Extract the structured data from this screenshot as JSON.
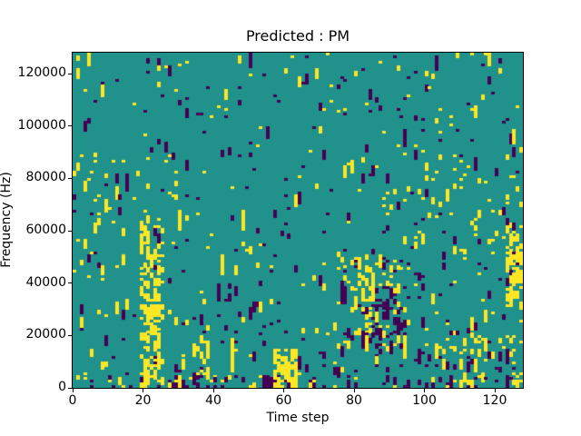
{
  "chart": {
    "title": "Predicted : PM",
    "xlabel": "Time step",
    "ylabel": "Frequency (Hz)"
  },
  "chart_data": {
    "type": "heatmap",
    "title": "Predicted : PM",
    "xlabel": "Time step",
    "ylabel": "Frequency (Hz)",
    "grid": {
      "cols": 128,
      "rows": 128
    },
    "x_range": [
      0,
      128
    ],
    "y_range": [
      0,
      128000
    ],
    "x_ticks": [
      0,
      20,
      40,
      60,
      80,
      100,
      120
    ],
    "y_ticks": [
      0,
      20000,
      40000,
      60000,
      80000,
      100000,
      120000
    ],
    "grid_lines": false,
    "legend": "none",
    "colormap": {
      "name": "viridis-3-level",
      "low": "#440154",
      "mid": "#21918c",
      "high": "#fde725",
      "background_value": "mid"
    },
    "pattern": {
      "seed": 11,
      "base_low_density": 0.016,
      "base_high_density": 0.013,
      "run_persistence": 0.5,
      "clusters": [
        {
          "t": [
            19,
            26
          ],
          "f": [
            0,
            62
          ],
          "color": "high",
          "density": 0.2
        },
        {
          "t": [
            21,
            25
          ],
          "f": [
            4,
            32
          ],
          "color": "high",
          "density": 0.35
        },
        {
          "t": [
            57,
            64
          ],
          "f": [
            0,
            15
          ],
          "color": "high",
          "density": 0.5
        },
        {
          "t": [
            54,
            59
          ],
          "f": [
            0,
            5
          ],
          "color": "low",
          "density": 0.35
        },
        {
          "t": [
            80,
            85
          ],
          "f": [
            18,
            46
          ],
          "color": "high",
          "density": 0.22
        },
        {
          "t": [
            85,
            95
          ],
          "f": [
            16,
            34
          ],
          "color": "low",
          "density": 0.25
        },
        {
          "t": [
            110,
            118
          ],
          "f": [
            2,
            20
          ],
          "color": "high",
          "density": 0.15
        },
        {
          "t": [
            123,
            128
          ],
          "f": [
            30,
            62
          ],
          "color": "high",
          "density": 0.38
        },
        {
          "t": [
            125,
            128
          ],
          "f": [
            0,
            10
          ],
          "color": "high",
          "density": 0.2
        },
        {
          "t": [
            29,
            38
          ],
          "f": [
            0,
            9
          ],
          "color": "low",
          "density": 0.18
        },
        {
          "t": [
            34,
            40
          ],
          "f": [
            5,
            20
          ],
          "color": "high",
          "density": 0.12
        },
        {
          "t": [
            0,
            64
          ],
          "f": [
            0,
            5
          ],
          "color": "low",
          "density": 0.07
        },
        {
          "t": [
            0,
            64
          ],
          "f": [
            0,
            5
          ],
          "color": "high",
          "density": 0.05
        },
        {
          "t": [
            64,
            128
          ],
          "f": [
            0,
            14
          ],
          "color": "low",
          "density": 0.05
        },
        {
          "t": [
            75,
            100
          ],
          "f": [
            14,
            50
          ],
          "color": "high",
          "density": 0.05
        },
        {
          "t": [
            75,
            100
          ],
          "f": [
            14,
            50
          ],
          "color": "low",
          "density": 0.05
        },
        {
          "t": [
            95,
            128
          ],
          "f": [
            50,
            90
          ],
          "color": "high",
          "density": 0.035
        },
        {
          "t": [
            0,
            30
          ],
          "f": [
            55,
            90
          ],
          "color": "high",
          "density": 0.03
        },
        {
          "t": [
            40,
            55
          ],
          "f": [
            15,
            40
          ],
          "color": "low",
          "density": 0.04
        },
        {
          "t": [
            100,
            128
          ],
          "f": [
            12,
            30
          ],
          "color": "high",
          "density": 0.05
        }
      ]
    }
  }
}
